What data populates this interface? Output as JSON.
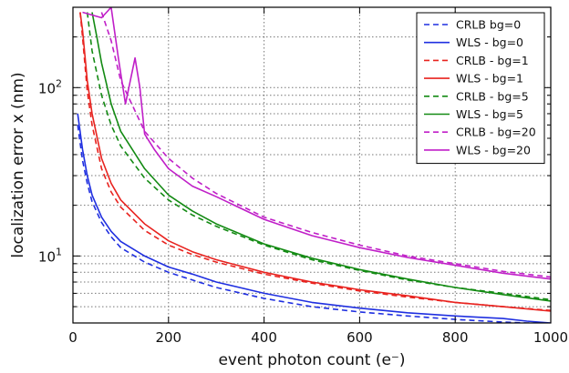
{
  "chart_data": {
    "type": "line",
    "title": "",
    "xlabel": "event photon count (e⁻)",
    "ylabel": "localization error x (nm)",
    "xlim": [
      0,
      1000
    ],
    "ylim": [
      4.0,
      300
    ],
    "yscale": "log",
    "grid": true,
    "legend_position": "top-right",
    "x_ticks": [
      0,
      200,
      400,
      600,
      800,
      1000
    ],
    "x_tick_labels": [
      "0",
      "200",
      "400",
      "600",
      "800",
      "1000"
    ],
    "y_tick_labels": [
      {
        "base": "10",
        "exp": "1",
        "value": 10
      },
      {
        "base": "10",
        "exp": "2",
        "value": 100
      }
    ],
    "series": [
      {
        "name": "CRLB bg=0",
        "color": "#1f2fe0",
        "dash": true,
        "x": [
          10,
          20,
          30,
          40,
          60,
          80,
          100,
          150,
          200,
          250,
          300,
          400,
          500,
          600,
          700,
          800,
          900,
          950,
          1000
        ],
        "y": [
          60,
          37,
          27,
          21,
          15.8,
          13,
          11.2,
          9.2,
          8.0,
          7.2,
          6.5,
          5.6,
          5.0,
          4.65,
          4.4,
          4.2,
          4.05,
          4.0,
          3.95
        ]
      },
      {
        "name": "WLS - bg=0",
        "color": "#1f2fe0",
        "dash": false,
        "x": [
          10,
          20,
          30,
          40,
          60,
          80,
          100,
          150,
          200,
          250,
          300,
          400,
          500,
          600,
          700,
          800,
          900,
          950,
          1000
        ],
        "y": [
          70,
          43,
          30,
          23,
          17,
          14,
          12.2,
          10.0,
          8.6,
          7.8,
          7.0,
          6.0,
          5.3,
          4.9,
          4.6,
          4.4,
          4.25,
          4.1,
          3.9
        ]
      },
      {
        "name": "CRLB - bg=1",
        "color": "#e8231f",
        "dash": true,
        "x": [
          15,
          20,
          30,
          40,
          60,
          80,
          100,
          150,
          200,
          250,
          300,
          400,
          500,
          600,
          700,
          800,
          900,
          1000
        ],
        "y": [
          280,
          200,
          95,
          60,
          33,
          24,
          19.5,
          14.2,
          11.6,
          10.2,
          9.2,
          7.8,
          6.9,
          6.2,
          5.7,
          5.3,
          5.0,
          4.75
        ]
      },
      {
        "name": "WLS - bg=1",
        "color": "#e8231f",
        "dash": false,
        "x": [
          15,
          20,
          30,
          40,
          60,
          80,
          100,
          150,
          200,
          250,
          300,
          400,
          500,
          600,
          700,
          800,
          900,
          1000
        ],
        "y": [
          280,
          220,
          110,
          70,
          38,
          27,
          21.5,
          15.5,
          12.3,
          10.6,
          9.5,
          8.0,
          7.0,
          6.3,
          5.8,
          5.3,
          5.0,
          4.7
        ]
      },
      {
        "name": "CRLB - bg=5",
        "color": "#138a13",
        "dash": true,
        "x": [
          30,
          40,
          60,
          80,
          100,
          150,
          200,
          250,
          300,
          400,
          500,
          600,
          700,
          800,
          900,
          1000
        ],
        "y": [
          280,
          165,
          90,
          60,
          45,
          29,
          21.5,
          17.5,
          15.0,
          11.6,
          9.5,
          8.2,
          7.2,
          6.5,
          6.0,
          5.5
        ]
      },
      {
        "name": "WLS - bg=5",
        "color": "#138a13",
        "dash": false,
        "x": [
          40,
          50,
          60,
          80,
          100,
          150,
          200,
          250,
          300,
          400,
          500,
          600,
          700,
          800,
          900,
          1000
        ],
        "y": [
          280,
          200,
          140,
          80,
          55,
          33,
          23,
          18.5,
          15.5,
          11.8,
          9.7,
          8.3,
          7.3,
          6.5,
          5.9,
          5.4
        ]
      },
      {
        "name": "CRLB - bg=20",
        "color": "#c01fc8",
        "dash": true,
        "x": [
          60,
          80,
          100,
          150,
          200,
          250,
          300,
          400,
          500,
          600,
          700,
          800,
          900,
          1000
        ],
        "y": [
          280,
          190,
          110,
          55,
          38,
          29,
          23.5,
          17.0,
          13.8,
          11.6,
          10.0,
          9.0,
          8.1,
          7.5
        ]
      },
      {
        "name": "WLS - bg=20",
        "color": "#c01fc8",
        "dash": false,
        "x": [
          20,
          60,
          80,
          95,
          110,
          130,
          140,
          150,
          170,
          200,
          250,
          300,
          400,
          500,
          600,
          700,
          800,
          900,
          1000
        ],
        "y": [
          280,
          260,
          300,
          150,
          80,
          150,
          100,
          53,
          43,
          33,
          26,
          22.5,
          16.5,
          13.2,
          11.2,
          9.8,
          8.8,
          7.9,
          7.3
        ]
      }
    ]
  }
}
